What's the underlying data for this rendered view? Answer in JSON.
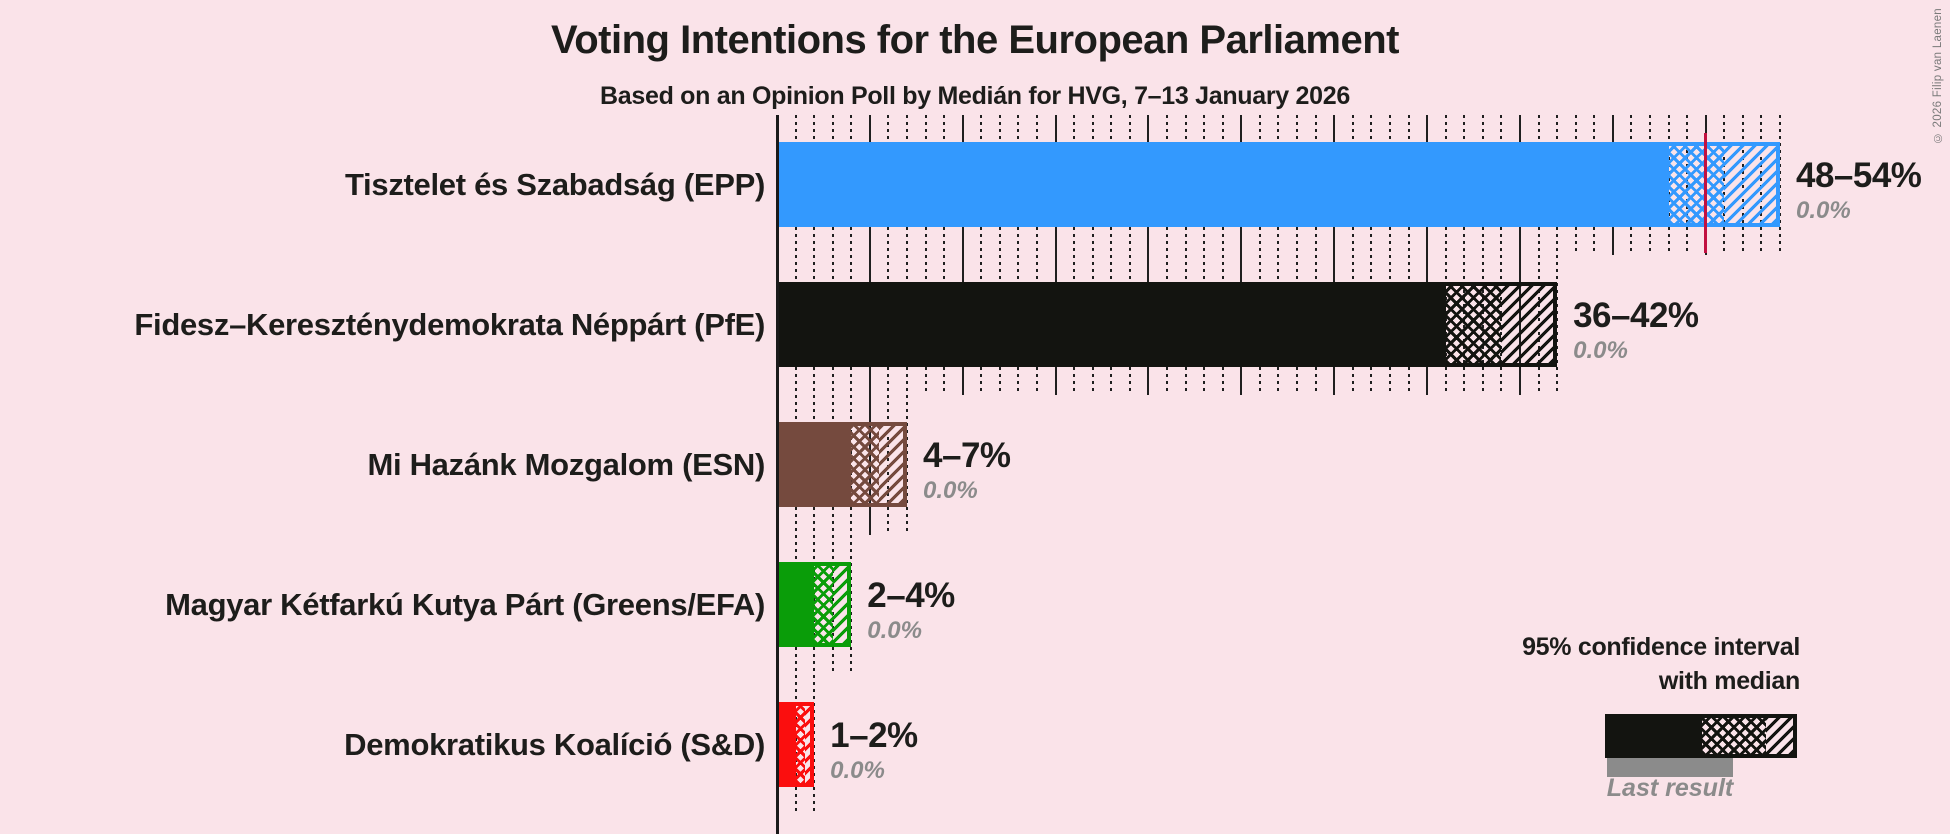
{
  "copyright": "© 2026 Filip van Laenen",
  "legend": {
    "ci_label_line1": "95% confidence interval",
    "ci_label_line2": "with median",
    "last_result_label": "Last result"
  },
  "colors": {
    "background": "#fae3e9",
    "majority_line": "#c11141",
    "last_result_bar": "#8b8b8b",
    "gridline": "#1f1f1f",
    "text": "#1d1d1b",
    "muted_text": "#8b8b8b"
  },
  "chart_data": {
    "type": "bar",
    "orientation": "horizontal",
    "title": "Voting Intentions for the European Parliament",
    "subtitle": "Based on an Opinion Poll by Medián for HVG, 7–13 January 2026",
    "unit": "percent",
    "x_axis": {
      "min": 0,
      "max": 54,
      "major_tick_interval": 5,
      "minor_tick_interval": 1,
      "gridlines": "solid-major-dotted-minor"
    },
    "majority_line_value": 50,
    "series": [
      {
        "party": "Tisztelet és Szabadság (EPP)",
        "ci_low": 48,
        "ci_high": 54,
        "median": 51,
        "value_label": "48–54%",
        "last_result_value": 0.0,
        "last_result_label": "0.0%",
        "color": "#3399fe"
      },
      {
        "party": "Fidesz–Kereszténydemokrata Néppárt (PfE)",
        "ci_low": 36,
        "ci_high": 42,
        "median": 39,
        "value_label": "36–42%",
        "last_result_value": 0.0,
        "last_result_label": "0.0%",
        "color": "#131410"
      },
      {
        "party": "Mi Hazánk Mozgalom (ESN)",
        "ci_low": 4,
        "ci_high": 7,
        "median": 5.5,
        "value_label": "4–7%",
        "last_result_value": 0.0,
        "last_result_label": "0.0%",
        "color": "#754a3e"
      },
      {
        "party": "Magyar Kétfarkú Kutya Párt (Greens/EFA)",
        "ci_low": 2,
        "ci_high": 4,
        "median": 3,
        "value_label": "2–4%",
        "last_result_value": 0.0,
        "last_result_label": "0.0%",
        "color": "#0a9d09"
      },
      {
        "party": "Demokratikus Koalíció (S&D)",
        "ci_low": 1,
        "ci_high": 2,
        "median": 1.5,
        "value_label": "1–2%",
        "last_result_value": 0.0,
        "last_result_label": "0.0%",
        "color": "#fb0e0e"
      }
    ],
    "legend_position": "bottom-right"
  }
}
